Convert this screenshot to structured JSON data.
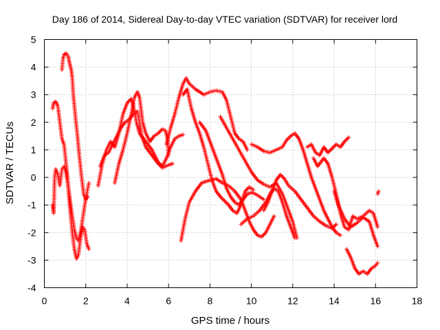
{
  "chart_data": {
    "type": "scatter",
    "title": "Day 186 of 2014, Sidereal Day-to-day VTEC variation (SDTVAR) for receiver lord",
    "xlabel": "GPS time / hours",
    "ylabel": "SDTVAR / TECUs",
    "xlim": [
      0,
      18
    ],
    "ylim": [
      -4,
      5
    ],
    "xticks": [
      "0",
      "2",
      "4",
      "6",
      "8",
      "10",
      "12",
      "14",
      "16",
      "18"
    ],
    "yticks": [
      "-4",
      "-3",
      "-2",
      "-1",
      "0",
      "1",
      "2",
      "3",
      "4",
      "5"
    ],
    "grid": true,
    "marker": "+",
    "color": "#ff0000",
    "series": [
      {
        "name": "arc-early-peak",
        "points": [
          [
            0.85,
            3.9
          ],
          [
            0.9,
            4.3
          ],
          [
            0.95,
            4.45
          ],
          [
            1.05,
            4.5
          ],
          [
            1.15,
            4.4
          ],
          [
            1.2,
            4.2
          ],
          [
            1.3,
            3.9
          ],
          [
            1.35,
            3.6
          ],
          [
            1.4,
            3.0
          ],
          [
            1.5,
            2.2
          ],
          [
            1.6,
            1.5
          ],
          [
            1.7,
            0.7
          ],
          [
            1.8,
            0.0
          ],
          [
            1.9,
            -0.6
          ],
          [
            2.0,
            -0.8
          ],
          [
            2.1,
            -0.7
          ]
        ]
      },
      {
        "name": "arc-early-descent",
        "points": [
          [
            0.4,
            2.5
          ],
          [
            0.45,
            2.7
          ],
          [
            0.55,
            2.75
          ],
          [
            0.65,
            2.6
          ],
          [
            0.75,
            2.0
          ],
          [
            0.85,
            1.4
          ],
          [
            0.95,
            1.2
          ],
          [
            1.05,
            0.5
          ],
          [
            1.15,
            -0.3
          ],
          [
            1.25,
            -1.2
          ],
          [
            1.35,
            -2.0
          ],
          [
            1.45,
            -2.6
          ],
          [
            1.55,
            -2.95
          ],
          [
            1.65,
            -2.8
          ],
          [
            1.75,
            -2.2
          ],
          [
            1.85,
            -1.8
          ],
          [
            1.95,
            -1.9
          ],
          [
            2.05,
            -2.4
          ],
          [
            2.15,
            -2.6
          ]
        ]
      },
      {
        "name": "arc-early-low",
        "points": [
          [
            0.4,
            -1.0
          ],
          [
            0.45,
            -1.3
          ],
          [
            0.5,
            0.0
          ],
          [
            0.55,
            0.3
          ],
          [
            0.65,
            0.1
          ],
          [
            0.75,
            -0.3
          ],
          [
            0.85,
            0.3
          ],
          [
            0.95,
            0.4
          ],
          [
            1.05,
            0.2
          ],
          [
            1.15,
            -0.3
          ],
          [
            1.25,
            -0.9
          ],
          [
            1.35,
            -1.4
          ],
          [
            1.45,
            -1.9
          ],
          [
            1.55,
            -2.2
          ],
          [
            1.65,
            -2.3
          ],
          [
            1.75,
            -2.0
          ],
          [
            1.85,
            -1.5
          ],
          [
            1.95,
            -1.0
          ],
          [
            2.05,
            -0.6
          ],
          [
            2.15,
            -0.2
          ]
        ]
      },
      {
        "name": "arc-morning-rise",
        "points": [
          [
            2.6,
            -0.3
          ],
          [
            2.8,
            0.5
          ],
          [
            3.0,
            1.0
          ],
          [
            3.2,
            1.3
          ],
          [
            3.4,
            1.1
          ],
          [
            3.6,
            1.6
          ],
          [
            3.8,
            2.3
          ],
          [
            4.0,
            2.7
          ],
          [
            4.2,
            2.85
          ],
          [
            4.3,
            2.6
          ],
          [
            4.45,
            2.0
          ],
          [
            4.6,
            1.6
          ],
          [
            4.8,
            1.4
          ],
          [
            5.0,
            1.2
          ],
          [
            5.2,
            1.0
          ],
          [
            5.5,
            0.55
          ],
          [
            5.7,
            0.4
          ],
          [
            5.9,
            0.7
          ],
          [
            6.1,
            1.1
          ],
          [
            6.3,
            1.4
          ],
          [
            6.5,
            1.5
          ],
          [
            6.7,
            1.55
          ]
        ]
      },
      {
        "name": "arc-morning-second",
        "points": [
          [
            3.4,
            -0.2
          ],
          [
            3.6,
            0.5
          ],
          [
            3.8,
            1.0
          ],
          [
            4.0,
            1.6
          ],
          [
            4.2,
            2.3
          ],
          [
            4.35,
            2.9
          ],
          [
            4.5,
            3.1
          ],
          [
            4.6,
            2.9
          ],
          [
            4.75,
            2.0
          ],
          [
            4.9,
            1.6
          ],
          [
            5.1,
            1.3
          ],
          [
            5.3,
            1.5
          ],
          [
            5.5,
            1.6
          ],
          [
            5.7,
            1.75
          ],
          [
            5.85,
            1.7
          ],
          [
            5.95,
            1.4
          ],
          [
            6.0,
            0.8
          ]
        ]
      },
      {
        "name": "arc-morning-third",
        "points": [
          [
            2.7,
            0.4
          ],
          [
            2.9,
            0.8
          ],
          [
            3.1,
            0.9
          ],
          [
            3.3,
            1.2
          ],
          [
            3.5,
            1.5
          ],
          [
            3.7,
            1.8
          ],
          [
            3.9,
            2.0
          ],
          [
            4.1,
            2.1
          ],
          [
            4.3,
            2.3
          ],
          [
            4.5,
            2.4
          ],
          [
            4.6,
            2.0
          ],
          [
            4.7,
            1.5
          ],
          [
            4.9,
            1.1
          ],
          [
            5.1,
            0.9
          ],
          [
            5.3,
            0.7
          ],
          [
            5.5,
            0.5
          ],
          [
            5.7,
            0.35
          ],
          [
            6.0,
            0.45
          ],
          [
            6.2,
            0.5
          ]
        ]
      },
      {
        "name": "arc-midday-high",
        "points": [
          [
            5.9,
            1.2
          ],
          [
            6.1,
            1.8
          ],
          [
            6.3,
            2.3
          ],
          [
            6.5,
            2.9
          ],
          [
            6.7,
            3.4
          ],
          [
            6.85,
            3.6
          ],
          [
            7.0,
            3.4
          ],
          [
            7.3,
            3.2
          ],
          [
            7.7,
            3.0
          ],
          [
            8.0,
            3.1
          ],
          [
            8.3,
            3.15
          ],
          [
            8.6,
            3.1
          ],
          [
            8.8,
            2.8
          ],
          [
            9.0,
            2.2
          ],
          [
            9.2,
            1.6
          ],
          [
            9.4,
            1.4
          ],
          [
            9.6,
            1.3
          ],
          [
            9.8,
            1.0
          ]
        ]
      },
      {
        "name": "arc-midday-fall",
        "points": [
          [
            6.7,
            3.0
          ],
          [
            6.9,
            3.2
          ],
          [
            7.1,
            2.5
          ],
          [
            7.3,
            2.0
          ],
          [
            7.5,
            1.6
          ],
          [
            7.7,
            1.1
          ],
          [
            7.9,
            0.5
          ],
          [
            8.1,
            -0.1
          ],
          [
            8.3,
            -0.5
          ],
          [
            8.5,
            -0.7
          ],
          [
            8.7,
            -0.85
          ],
          [
            8.9,
            -1.0
          ],
          [
            9.1,
            -1.2
          ],
          [
            9.3,
            -1.3
          ],
          [
            9.5,
            -1.0
          ],
          [
            9.7,
            -0.5
          ],
          [
            9.9,
            -0.35
          ],
          [
            10.1,
            -0.45
          ]
        ]
      },
      {
        "name": "arc-midday-second-fall",
        "points": [
          [
            7.5,
            2.0
          ],
          [
            7.8,
            1.7
          ],
          [
            8.0,
            1.3
          ],
          [
            8.2,
            0.9
          ],
          [
            8.4,
            0.5
          ],
          [
            8.6,
            0.1
          ],
          [
            8.8,
            -0.4
          ],
          [
            9.0,
            -0.7
          ],
          [
            9.2,
            -0.9
          ],
          [
            9.4,
            -1.0
          ],
          [
            9.6,
            -0.8
          ],
          [
            9.8,
            -0.6
          ],
          [
            10.0,
            -0.55
          ],
          [
            10.2,
            -0.6
          ],
          [
            10.4,
            -0.7
          ],
          [
            10.6,
            -0.8
          ]
        ]
      },
      {
        "name": "arc-afternoon-slope",
        "points": [
          [
            8.5,
            2.2
          ],
          [
            8.8,
            1.8
          ],
          [
            9.1,
            1.4
          ],
          [
            9.4,
            1.0
          ],
          [
            9.7,
            0.6
          ],
          [
            10.0,
            0.2
          ],
          [
            10.3,
            -0.1
          ],
          [
            10.6,
            -0.25
          ],
          [
            10.9,
            -0.35
          ],
          [
            11.2,
            -0.2
          ],
          [
            11.5,
            -0.6
          ],
          [
            11.8,
            -1.2
          ],
          [
            12.0,
            -1.6
          ],
          [
            12.2,
            -2.2
          ]
        ]
      },
      {
        "name": "arc-mid-low",
        "points": [
          [
            6.6,
            -2.3
          ],
          [
            6.8,
            -1.5
          ],
          [
            7.0,
            -0.9
          ],
          [
            7.3,
            -0.5
          ],
          [
            7.6,
            -0.2
          ],
          [
            8.0,
            -0.1
          ],
          [
            8.3,
            -0.05
          ],
          [
            8.6,
            -0.2
          ],
          [
            8.9,
            -0.3
          ],
          [
            9.2,
            -0.5
          ],
          [
            9.5,
            -0.8
          ],
          [
            9.7,
            -1.2
          ],
          [
            9.9,
            -1.6
          ],
          [
            10.1,
            -1.9
          ],
          [
            10.3,
            -2.1
          ],
          [
            10.5,
            -2.15
          ],
          [
            10.7,
            -2.0
          ],
          [
            10.9,
            -1.7
          ],
          [
            11.1,
            -1.4
          ]
        ]
      },
      {
        "name": "arc-afternoon-hump",
        "points": [
          [
            9.5,
            -1.7
          ],
          [
            9.8,
            -1.5
          ],
          [
            10.1,
            -1.4
          ],
          [
            10.4,
            -1.2
          ],
          [
            10.7,
            -0.9
          ],
          [
            10.9,
            -0.6
          ],
          [
            11.1,
            -0.4
          ],
          [
            11.3,
            -0.5
          ],
          [
            11.5,
            -0.9
          ],
          [
            11.7,
            -1.4
          ],
          [
            11.9,
            -1.8
          ],
          [
            12.1,
            -2.2
          ]
        ]
      },
      {
        "name": "arc-afternoon-ridge",
        "points": [
          [
            10.0,
            1.2
          ],
          [
            10.3,
            1.1
          ],
          [
            10.6,
            0.95
          ],
          [
            10.9,
            0.9
          ],
          [
            11.2,
            1.0
          ],
          [
            11.5,
            1.1
          ],
          [
            11.7,
            1.35
          ],
          [
            11.9,
            1.5
          ],
          [
            12.1,
            1.6
          ],
          [
            12.3,
            1.4
          ],
          [
            12.5,
            1.0
          ],
          [
            12.7,
            0.5
          ],
          [
            12.9,
            0.0
          ],
          [
            13.1,
            -0.4
          ],
          [
            13.3,
            -0.8
          ],
          [
            13.5,
            -1.2
          ],
          [
            13.7,
            -1.5
          ],
          [
            13.9,
            -1.8
          ],
          [
            14.1,
            -2.0
          ],
          [
            14.3,
            -2.1
          ]
        ]
      },
      {
        "name": "arc-afternoon-descent",
        "points": [
          [
            10.6,
            -1.2
          ],
          [
            10.8,
            -0.9
          ],
          [
            11.0,
            -0.5
          ],
          [
            11.2,
            -0.1
          ],
          [
            11.4,
            0.1
          ],
          [
            11.6,
            -0.05
          ],
          [
            11.8,
            -0.3
          ],
          [
            12.1,
            -0.5
          ],
          [
            12.4,
            -0.8
          ],
          [
            12.7,
            -1.1
          ],
          [
            13.0,
            -1.4
          ],
          [
            13.3,
            -1.6
          ],
          [
            13.6,
            -1.75
          ],
          [
            13.9,
            -1.85
          ],
          [
            14.1,
            -1.7
          ]
        ]
      },
      {
        "name": "arc-late-a",
        "points": [
          [
            12.7,
            1.1
          ],
          [
            12.9,
            1.2
          ],
          [
            13.1,
            0.9
          ],
          [
            13.3,
            0.8
          ],
          [
            13.5,
            1.1
          ],
          [
            13.7,
            0.9
          ],
          [
            13.9,
            1.05
          ],
          [
            14.1,
            1.2
          ],
          [
            14.3,
            1.1
          ],
          [
            14.5,
            1.3
          ],
          [
            14.7,
            1.45
          ]
        ]
      },
      {
        "name": "arc-late-b",
        "points": [
          [
            13.0,
            0.7
          ],
          [
            13.2,
            0.4
          ],
          [
            13.5,
            0.7
          ],
          [
            13.7,
            0.5
          ],
          [
            13.9,
            0.0
          ],
          [
            14.1,
            -0.6
          ],
          [
            14.3,
            -1.3
          ],
          [
            14.5,
            -1.8
          ],
          [
            14.7,
            -1.9
          ],
          [
            14.9,
            -1.4
          ],
          [
            15.1,
            -1.5
          ],
          [
            15.4,
            -1.4
          ],
          [
            15.7,
            -1.2
          ],
          [
            15.9,
            -1.3
          ],
          [
            16.1,
            -1.8
          ]
        ]
      },
      {
        "name": "arc-late-c",
        "points": [
          [
            14.0,
            -0.5
          ],
          [
            14.2,
            -1.0
          ],
          [
            14.5,
            -1.5
          ],
          [
            14.8,
            -1.8
          ],
          [
            15.1,
            -1.65
          ],
          [
            15.4,
            -1.45
          ],
          [
            15.7,
            -1.6
          ],
          [
            15.9,
            -2.1
          ],
          [
            16.1,
            -2.5
          ]
        ]
      },
      {
        "name": "arc-late-low",
        "points": [
          [
            14.6,
            -2.6
          ],
          [
            14.8,
            -2.9
          ],
          [
            15.0,
            -3.3
          ],
          [
            15.2,
            -3.5
          ],
          [
            15.4,
            -3.4
          ],
          [
            15.6,
            -3.5
          ],
          [
            15.8,
            -3.3
          ],
          [
            16.0,
            -3.2
          ],
          [
            16.1,
            -3.1
          ]
        ]
      },
      {
        "name": "arc-late-tail",
        "points": [
          [
            16.1,
            -0.6
          ],
          [
            16.15,
            -0.5
          ]
        ]
      }
    ]
  }
}
